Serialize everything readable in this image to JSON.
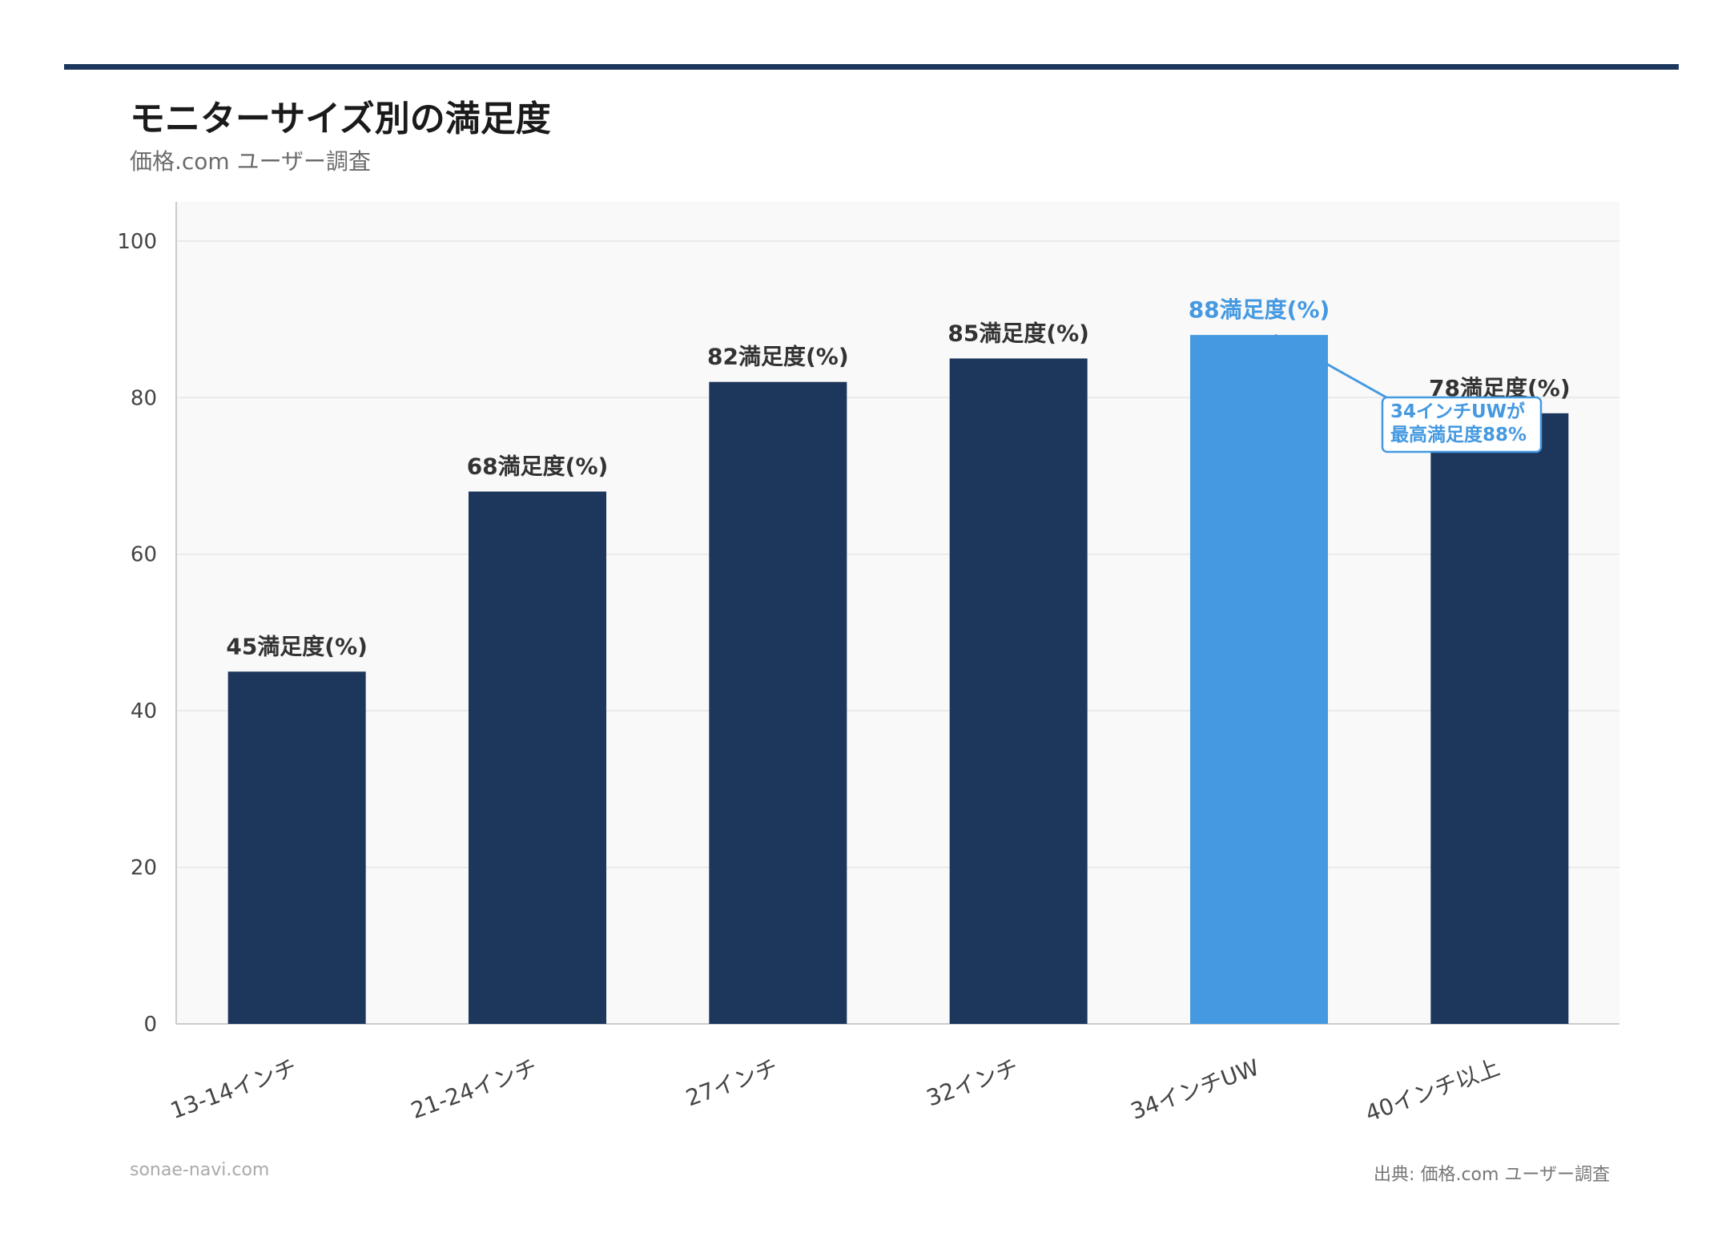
{
  "colors": {
    "bar": "#1c365c",
    "highlight": "#4499e1",
    "top_rule": "#1c365c",
    "plot_bg": "#f9f9f9",
    "grid": "#e6e6e6",
    "axis": "#cccccc"
  },
  "header": {
    "title": "モニターサイズ別の満足度",
    "subtitle": "価格.com ユーザー調査"
  },
  "footer": {
    "site": "sonae-navi.com",
    "source": "出典: 価格.com ユーザー調査"
  },
  "chart_data": {
    "type": "bar",
    "categories": [
      "13-14インチ",
      "21-24インチ",
      "27インチ",
      "32インチ",
      "34インチUW",
      "40インチ以上"
    ],
    "values": [
      45,
      68,
      82,
      85,
      88,
      78
    ],
    "value_labels": [
      "45満足度(%)",
      "68満足度(%)",
      "82満足度(%)",
      "85満足度(%)",
      "88満足度(%)",
      "78満足度(%)"
    ],
    "highlight_index": 4,
    "ylim": [
      0,
      105
    ],
    "yticks": [
      0,
      20,
      40,
      60,
      80,
      100
    ],
    "grid": true,
    "annotation": {
      "lines": [
        "34インチUWが",
        "最高満足度88%"
      ],
      "target_index": 4
    }
  }
}
